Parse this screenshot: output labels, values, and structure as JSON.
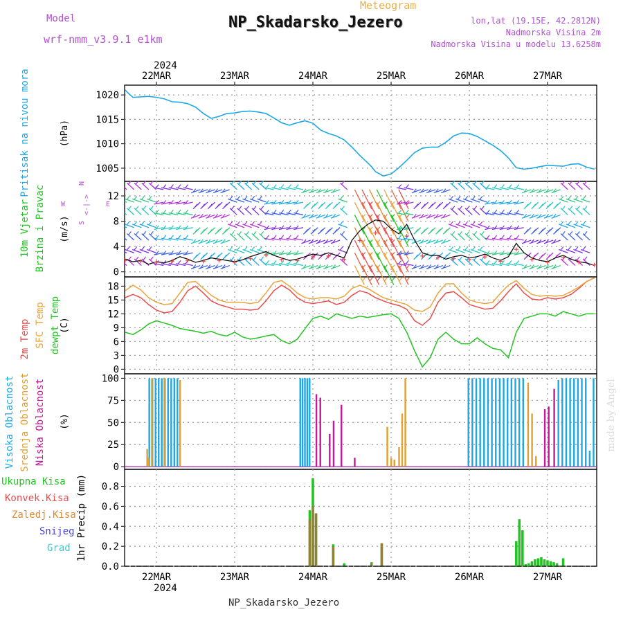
{
  "header": {
    "model_label": "Model",
    "model_name": "wrf-nmm_v3.9.1 e1km",
    "meteogram_label": "Meteogram",
    "station": "NP_Skadarsko_Jezero",
    "lonlat": "lon,lat (19.15E, 42.2812N)",
    "altitude": "Nadmorska Visina 2m",
    "model_altitude": "Nadmorska Visina u modelu 13.6258m",
    "footer_station": "NP_Skadarsko_Jezero",
    "credit": "made by Angel"
  },
  "colors": {
    "pressure": "#1ea7e6",
    "wind_label": "#22c322",
    "temp2m": "#e84c4c",
    "sfc_temp": "#e8a53c",
    "dewpt": "#22c322",
    "high_cloud": "#1ea7e6",
    "mid_cloud": "#e0a030",
    "low_cloud": "#c2189a",
    "precip_total": "#22c322",
    "precip_conv": "#e84c4c",
    "precip_frozen": "#e08a30",
    "snow": "#4444dd",
    "graupel": "#33cccc",
    "direction_legend": "#b050d0"
  },
  "time_axis": {
    "year": "2024",
    "days": [
      "22MAR",
      "23MAR",
      "24MAR",
      "25MAR",
      "26MAR",
      "27MAR"
    ]
  },
  "chart_data": [
    {
      "type": "line",
      "ylabel": "Pritisak na nivou mora",
      "unit": "(hPa)",
      "yticks": [
        1005,
        1010,
        1015,
        1020
      ],
      "ylim": [
        1002.3,
        1022
      ],
      "x_units": "days since 22MAR 00 UTC",
      "x": [
        -0.4,
        -0.35,
        -0.3,
        -0.2,
        -0.1,
        0,
        0.1,
        0.2,
        0.3,
        0.4,
        0.5,
        0.6,
        0.7,
        0.8,
        0.9,
        1.0,
        1.1,
        1.2,
        1.3,
        1.4,
        1.5,
        1.6,
        1.7,
        1.8,
        1.9,
        2.0,
        2.1,
        2.2,
        2.3,
        2.4,
        2.5,
        2.6,
        2.7,
        2.75,
        2.8,
        2.9,
        3.0,
        3.1,
        3.2,
        3.3,
        3.4,
        3.5,
        3.6,
        3.7,
        3.8,
        3.9,
        4.0,
        4.1,
        4.2,
        4.3,
        4.4,
        4.5,
        4.6,
        4.7,
        4.8,
        4.9,
        5.0,
        5.1,
        5.2,
        5.3,
        5.4,
        5.5,
        5.6
      ],
      "series": [
        {
          "values": [
            1021,
            1020.2,
            1019.5,
            1019.6,
            1019.7,
            1019.5,
            1019.2,
            1018.6,
            1018.5,
            1018.2,
            1017.5,
            1016.2,
            1015.2,
            1015.6,
            1016.2,
            1016.3,
            1016.6,
            1016.7,
            1016.5,
            1016.2,
            1015.3,
            1014.3,
            1013.8,
            1014.3,
            1014.7,
            1014.2,
            1012.8,
            1012.1,
            1011.6,
            1010.8,
            1009.3,
            1007.6,
            1006.1,
            1005.3,
            1004.3,
            1003.4,
            1003.8,
            1005.1,
            1006.6,
            1008.2,
            1009.1,
            1009.3,
            1009.3,
            1010.3,
            1011.6,
            1012.2,
            1012.1,
            1011.5,
            1010.6,
            1009.7,
            1008.6,
            1007.1,
            1005.1,
            1004.8,
            1005.0,
            1005.3,
            1005.6,
            1005.5,
            1005.4,
            1005.8,
            1005.9,
            1005.2,
            1004.8
          ]
        }
      ]
    },
    {
      "type": "line",
      "ylabel": "10m Vjetar Brzina i Pravac",
      "unit": "(m/s)",
      "yticks": [
        0,
        4,
        8,
        12
      ],
      "ylim": [
        -0.8,
        14.3
      ],
      "direction_legend": [
        "N",
        "W",
        "<-|->",
        "E",
        "S"
      ],
      "x_units": "days since 22MAR 00 UTC",
      "x": [
        -0.4,
        -0.3,
        -0.2,
        -0.1,
        0,
        0.1,
        0.2,
        0.3,
        0.4,
        0.5,
        0.6,
        0.7,
        0.8,
        0.9,
        1.0,
        1.1,
        1.2,
        1.3,
        1.4,
        1.5,
        1.6,
        1.7,
        1.8,
        1.9,
        2.0,
        2.1,
        2.2,
        2.3,
        2.4,
        2.5,
        2.6,
        2.7,
        2.8,
        2.9,
        3.0,
        3.1,
        3.2,
        3.3,
        3.4,
        3.5,
        3.6,
        3.7,
        3.8,
        3.9,
        4.0,
        4.1,
        4.2,
        4.3,
        4.4,
        4.5,
        4.6,
        4.7,
        4.8,
        4.9,
        5.0,
        5.1,
        5.2,
        5.3,
        5.4,
        5.5,
        5.6
      ],
      "series": [
        {
          "values": [
            2.0,
            1.6,
            1.8,
            1.2,
            1.6,
            1.4,
            1.8,
            2.4,
            2.0,
            1.5,
            1.8,
            2.2,
            2.0,
            1.8,
            1.6,
            1.9,
            2.4,
            2.8,
            3.2,
            2.6,
            2.2,
            1.8,
            2.0,
            2.4,
            2.8,
            2.6,
            3.0,
            2.6,
            2.2,
            5.0,
            6.5,
            7.5,
            8.2,
            8.0,
            6.8,
            6.0,
            7.5,
            5.0,
            3.0,
            2.6,
            2.6,
            2.0,
            2.4,
            2.6,
            2.2,
            2.4,
            2.8,
            2.2,
            1.8,
            2.4,
            4.5,
            3.0,
            2.2,
            1.8,
            1.6,
            2.2,
            2.6,
            2.0,
            1.6,
            1.4,
            1.0
          ]
        }
      ]
    },
    {
      "type": "line",
      "ylabel": "2m Temp / SFC Temp / dewpt Temp",
      "unit": "(C)",
      "yticks": [
        0,
        3,
        6,
        9,
        12,
        15,
        18
      ],
      "ylim": [
        -1,
        20
      ],
      "x_units": "days since 22MAR 00 UTC",
      "x": [
        -0.4,
        -0.3,
        -0.2,
        -0.1,
        0,
        0.1,
        0.2,
        0.3,
        0.4,
        0.5,
        0.6,
        0.7,
        0.8,
        0.9,
        1.0,
        1.1,
        1.2,
        1.3,
        1.4,
        1.5,
        1.6,
        1.7,
        1.8,
        1.9,
        2.0,
        2.1,
        2.2,
        2.3,
        2.4,
        2.5,
        2.6,
        2.7,
        2.8,
        2.9,
        3.0,
        3.1,
        3.2,
        3.3,
        3.4,
        3.5,
        3.6,
        3.7,
        3.8,
        3.9,
        4.0,
        4.1,
        4.2,
        4.3,
        4.4,
        4.5,
        4.6,
        4.7,
        4.8,
        4.9,
        5.0,
        5.1,
        5.2,
        5.3,
        5.4,
        5.5,
        5.6
      ],
      "series": [
        {
          "name": "2m Temp",
          "values": [
            15.5,
            16.2,
            15.5,
            14.0,
            12.8,
            12.2,
            12.5,
            14.5,
            17.0,
            18.0,
            16.5,
            14.8,
            14.0,
            13.5,
            13.0,
            13.0,
            12.8,
            13.0,
            14.8,
            17.0,
            18.2,
            17.2,
            15.5,
            14.5,
            14.2,
            14.5,
            14.8,
            14.0,
            14.5,
            16.0,
            17.0,
            16.5,
            15.5,
            14.8,
            14.2,
            13.8,
            13.0,
            10.5,
            9.5,
            11.0,
            14.5,
            16.5,
            16.8,
            15.5,
            14.0,
            13.5,
            13.0,
            13.2,
            14.8,
            16.8,
            18.5,
            16.5,
            15.2,
            15.0,
            15.5,
            15.2,
            15.5,
            16.2,
            17.5,
            19.0,
            19.8
          ]
        },
        {
          "name": "SFC Temp",
          "values": [
            17.0,
            18.2,
            17.2,
            15.5,
            14.5,
            14.0,
            14.2,
            16.5,
            18.8,
            19.0,
            17.5,
            16.0,
            15.0,
            14.5,
            14.5,
            14.5,
            14.2,
            14.5,
            16.5,
            18.8,
            19.2,
            18.0,
            16.5,
            15.5,
            15.2,
            15.5,
            15.5,
            15.2,
            15.8,
            17.5,
            18.2,
            17.5,
            16.5,
            15.5,
            15.0,
            14.5,
            14.0,
            12.8,
            12.5,
            13.5,
            16.5,
            18.5,
            18.5,
            16.5,
            15.0,
            14.5,
            14.2,
            14.5,
            16.5,
            18.2,
            19.2,
            17.5,
            16.2,
            15.8,
            16.0,
            15.8,
            16.0,
            16.8,
            17.8,
            19.0,
            19.8
          ]
        },
        {
          "name": "dewpt Temp",
          "values": [
            8.0,
            7.5,
            8.5,
            9.8,
            10.5,
            10.0,
            9.5,
            8.8,
            8.5,
            8.2,
            7.8,
            8.2,
            7.5,
            7.2,
            8.0,
            7.0,
            6.5,
            6.8,
            7.2,
            7.5,
            6.2,
            5.5,
            6.5,
            8.8,
            11.0,
            11.5,
            10.8,
            12.0,
            11.5,
            11.0,
            11.5,
            11.2,
            11.5,
            11.8,
            12.0,
            11.0,
            8.0,
            4.0,
            0.5,
            2.5,
            6.5,
            8.0,
            6.5,
            5.5,
            5.5,
            6.8,
            5.5,
            4.5,
            4.2,
            2.5,
            8.0,
            11.0,
            11.5,
            12.0,
            12.0,
            11.5,
            12.5,
            12.0,
            11.5,
            12.0,
            12.0
          ]
        }
      ]
    },
    {
      "type": "bar",
      "ylabel": "Visoka Oblacnost / Srednja Oblacnost / Niska Oblacnost",
      "unit": "(%)",
      "yticks": [
        0,
        25,
        50,
        75,
        100
      ],
      "ylim": [
        -3,
        105
      ],
      "x_units": "days since 22MAR 00 UTC",
      "series": [
        {
          "name": "Visoka Oblacnost",
          "x": [
            -0.08,
            -0.04,
            0.0,
            0.04,
            0.08,
            0.12,
            0.16,
            0.2,
            0.24,
            0.28,
            1.85,
            1.88,
            1.91,
            1.94,
            1.97,
            4.0,
            4.05,
            4.1,
            4.15,
            4.2,
            4.25,
            4.3,
            4.35,
            4.4,
            4.45,
            4.5,
            4.55,
            4.6,
            4.65,
            4.7,
            5.15,
            5.2,
            5.25,
            5.3,
            5.35,
            5.4,
            5.45,
            5.5,
            5.55,
            5.6
          ],
          "values": [
            100,
            100,
            100,
            100,
            100,
            100,
            100,
            100,
            100,
            100,
            100,
            100,
            100,
            100,
            100,
            100,
            100,
            100,
            100,
            100,
            100,
            100,
            100,
            100,
            100,
            100,
            100,
            100,
            100,
            100,
            98,
            100,
            100,
            100,
            100,
            100,
            100,
            100,
            18,
            100
          ]
        },
        {
          "name": "Srednja Oblacnost",
          "x": [
            -0.12,
            -0.1,
            -0.06,
            0.1,
            0.3,
            2.95,
            3.0,
            3.04,
            3.1,
            3.14,
            3.18,
            4.75,
            4.8,
            4.85
          ],
          "values": [
            20,
            10,
            100,
            100,
            98,
            45,
            10,
            8,
            22,
            60,
            100,
            95,
            60,
            12
          ]
        },
        {
          "name": "Niska Oblacnost",
          "x": [
            2.03,
            2.08,
            2.2,
            2.25,
            2.35,
            2.52,
            4.95,
            5.0,
            5.07
          ],
          "values": [
            82,
            78,
            37,
            52,
            70,
            10,
            65,
            68,
            88
          ]
        }
      ]
    },
    {
      "type": "bar",
      "ylabel": "1hr Precip (mm)",
      "legend": [
        "Ukupna Kisa",
        "Konvek.Kisa",
        "Zaledj.Kisa",
        "Snijeg",
        "Grad"
      ],
      "yticks": [
        0.0,
        0.2,
        0.4,
        0.6,
        0.8
      ],
      "ylim": [
        0,
        0.97
      ],
      "x_units": "days since 22MAR 00 UTC",
      "series": [
        {
          "name": "Ukupna Kisa",
          "x": [
            1.96,
            2.0,
            2.04,
            2.26,
            2.4,
            2.75,
            2.88,
            4.6,
            4.64,
            4.68,
            4.72,
            4.76,
            4.8,
            4.84,
            4.88,
            4.92,
            4.96,
            5.0,
            5.04,
            5.08,
            5.12,
            5.2
          ],
          "values": [
            0.56,
            0.88,
            0.53,
            0.22,
            0.03,
            0.04,
            0.23,
            0.25,
            0.47,
            0.36,
            0.02,
            0.03,
            0.05,
            0.07,
            0.08,
            0.09,
            0.07,
            0.06,
            0.05,
            0.04,
            0.03,
            0.08
          ]
        },
        {
          "name": "Konvek.Kisa",
          "x": [
            1.96,
            2.0,
            2.04,
            2.26,
            2.75,
            2.88
          ],
          "values": [
            0.47,
            0.6,
            0.53,
            0.2,
            0.03,
            0.23
          ]
        }
      ]
    }
  ]
}
